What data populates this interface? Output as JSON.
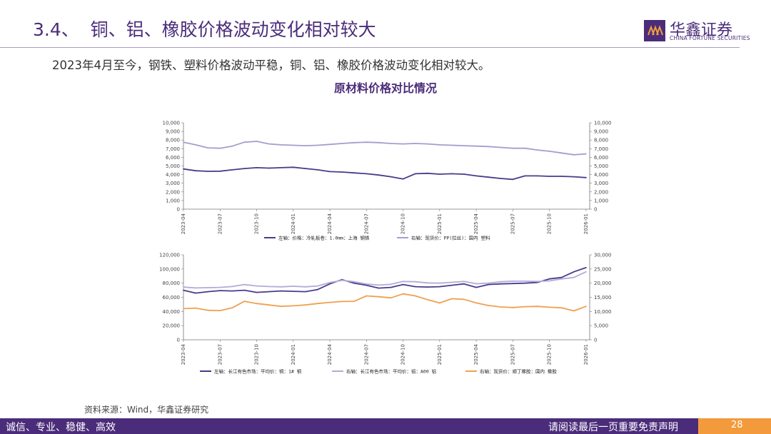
{
  "header": {
    "title": "3.4、  铜、铝、橡胶价格波动变化相对较大",
    "logo_cn": "华鑫证券",
    "logo_en": "CHINA FORTUNE SECURITIES"
  },
  "subtitle": "2023年4月至今，钢铁、塑料价格波动平稳，铜、铝、橡胶价格波动变化相对较大。",
  "chart_title": "原材料价格对比情况",
  "source": "资料来源：Wind，华鑫证券研究",
  "footer": {
    "left": "诚信、专业、稳健、高效",
    "right": "请阅读最后一页重要免责声明",
    "page": "28"
  },
  "colors": {
    "brand": "#4a2c7a",
    "steel": "#4b3a8c",
    "plastic": "#a79ccf",
    "copper": "#4b3a8c",
    "aluminum": "#b4aad6",
    "rubber": "#f0a050",
    "accent": "#f39a3d"
  },
  "chart_data": [
    {
      "type": "line",
      "x_ticks": [
        "2023-04",
        "2023-07",
        "2023-10",
        "2024-01",
        "2024-04",
        "2024-07",
        "2024-10",
        "2025-01",
        "2025-04",
        "2025-07",
        "2025-10",
        "2026-01"
      ],
      "y_left_ticks": [
        "0",
        "1,000",
        "2,000",
        "3,000",
        "4,000",
        "5,000",
        "6,000",
        "7,000",
        "8,000",
        "9,000",
        "10,000"
      ],
      "y_right_ticks": [
        "0",
        "1,000",
        "2,000",
        "3,000",
        "4,000",
        "5,000",
        "6,000",
        "7,000",
        "8,000",
        "9,000",
        "10,000"
      ],
      "ylim_left": [
        0,
        10000
      ],
      "ylim_right": [
        0,
        10000
      ],
      "series": [
        {
          "name": "左轴：价格：冷轧板卷：1.0mm：上海 钢铁",
          "axis": "left",
          "color": "#4b3a8c",
          "x": [
            "2023-04",
            "2023-05",
            "2023-06",
            "2023-07",
            "2023-08",
            "2023-09",
            "2023-10",
            "2023-11",
            "2023-12",
            "2024-01",
            "2024-02",
            "2024-03",
            "2024-04",
            "2024-05",
            "2024-06",
            "2024-07",
            "2024-08",
            "2024-09",
            "2024-10",
            "2024-11",
            "2024-12",
            "2025-01",
            "2025-02",
            "2025-03",
            "2025-04",
            "2025-05",
            "2025-06",
            "2025-07",
            "2025-08",
            "2025-09",
            "2025-10",
            "2025-11",
            "2025-12",
            "2026-01"
          ],
          "values": [
            4650,
            4450,
            4380,
            4400,
            4550,
            4700,
            4800,
            4750,
            4800,
            4850,
            4700,
            4550,
            4350,
            4300,
            4200,
            4100,
            3950,
            3750,
            3500,
            4100,
            4150,
            4050,
            4100,
            4050,
            3850,
            3700,
            3550,
            3450,
            3850,
            3850,
            3800,
            3800,
            3750,
            3650
          ]
        },
        {
          "name": "右轴：现货价：PP(拉丝)：国内 塑料",
          "axis": "right",
          "color": "#a79ccf",
          "x": [
            "2023-04",
            "2023-05",
            "2023-06",
            "2023-07",
            "2023-08",
            "2023-09",
            "2023-10",
            "2023-11",
            "2023-12",
            "2024-01",
            "2024-02",
            "2024-03",
            "2024-04",
            "2024-05",
            "2024-06",
            "2024-07",
            "2024-08",
            "2024-09",
            "2024-10",
            "2024-11",
            "2024-12",
            "2025-01",
            "2025-02",
            "2025-03",
            "2025-04",
            "2025-05",
            "2025-06",
            "2025-07",
            "2025-08",
            "2025-09",
            "2025-10",
            "2025-11",
            "2025-12",
            "2026-01"
          ],
          "values": [
            7750,
            7450,
            7100,
            7050,
            7300,
            7750,
            7850,
            7550,
            7450,
            7400,
            7350,
            7400,
            7500,
            7600,
            7700,
            7750,
            7700,
            7600,
            7550,
            7600,
            7550,
            7450,
            7400,
            7350,
            7300,
            7250,
            7150,
            7050,
            7050,
            6850,
            6700,
            6500,
            6300,
            6400
          ]
        }
      ]
    },
    {
      "type": "line",
      "x_ticks": [
        "2023-04",
        "2023-07",
        "2023-10",
        "2024-01",
        "2024-04",
        "2024-07",
        "2024-10",
        "2025-01",
        "2025-04",
        "2025-07",
        "2025-10",
        "2026-01"
      ],
      "y_left_ticks": [
        "0",
        "20,000",
        "40,000",
        "60,000",
        "80,000",
        "100,000",
        "120,000"
      ],
      "y_right_ticks": [
        "0",
        "5,000",
        "10,000",
        "15,000",
        "20,000",
        "25,000",
        "30,000"
      ],
      "ylim_left": [
        0,
        120000
      ],
      "ylim_right": [
        0,
        30000
      ],
      "series": [
        {
          "name": "左轴：长江有色市场：平均价：铜：1# 铜",
          "axis": "left",
          "color": "#4b3a8c",
          "x": [
            "2023-04",
            "2023-05",
            "2023-06",
            "2023-07",
            "2023-08",
            "2023-09",
            "2023-10",
            "2023-11",
            "2023-12",
            "2024-01",
            "2024-02",
            "2024-03",
            "2024-04",
            "2024-05",
            "2024-06",
            "2024-07",
            "2024-08",
            "2024-09",
            "2024-10",
            "2024-11",
            "2024-12",
            "2025-01",
            "2025-02",
            "2025-03",
            "2025-04",
            "2025-05",
            "2025-06",
            "2025-07",
            "2025-08",
            "2025-09",
            "2025-10",
            "2025-11",
            "2025-12",
            "2026-01"
          ],
          "values": [
            70000,
            66000,
            68000,
            69500,
            69000,
            70000,
            67000,
            68000,
            69000,
            68500,
            68000,
            71000,
            79000,
            85000,
            80000,
            77000,
            73000,
            74000,
            78000,
            75000,
            74500,
            75000,
            77000,
            79000,
            74000,
            78000,
            79000,
            79500,
            80000,
            81000,
            86000,
            88000,
            96000,
            102000
          ]
        },
        {
          "name": "右轴：长江有色市场：平均价：铝：A00 铝",
          "axis": "right",
          "color": "#b4aad6",
          "x": [
            "2023-04",
            "2023-05",
            "2023-06",
            "2023-07",
            "2023-08",
            "2023-09",
            "2023-10",
            "2023-11",
            "2023-12",
            "2024-01",
            "2024-02",
            "2024-03",
            "2024-04",
            "2024-05",
            "2024-06",
            "2024-07",
            "2024-08",
            "2024-09",
            "2024-10",
            "2024-11",
            "2024-12",
            "2025-01",
            "2025-02",
            "2025-03",
            "2025-04",
            "2025-05",
            "2025-06",
            "2025-07",
            "2025-08",
            "2025-09",
            "2025-10",
            "2025-11",
            "2025-12",
            "2026-01"
          ],
          "values": [
            18600,
            18300,
            18400,
            18500,
            18800,
            19500,
            19000,
            18800,
            18700,
            18900,
            18700,
            19000,
            20200,
            21000,
            20500,
            19700,
            19300,
            19600,
            20600,
            20500,
            20100,
            20000,
            20300,
            20600,
            19800,
            20000,
            20500,
            20700,
            20700,
            20600,
            20800,
            21500,
            22000,
            24000
          ]
        },
        {
          "name": "右轴：现货价：顺丁橡胶：国内 橡胶",
          "axis": "right",
          "color": "#f0a050",
          "x": [
            "2023-04",
            "2023-05",
            "2023-06",
            "2023-07",
            "2023-08",
            "2023-09",
            "2023-10",
            "2023-11",
            "2023-12",
            "2024-01",
            "2024-02",
            "2024-03",
            "2024-04",
            "2024-05",
            "2024-06",
            "2024-07",
            "2024-08",
            "2024-09",
            "2024-10",
            "2024-11",
            "2024-12",
            "2025-01",
            "2025-02",
            "2025-03",
            "2025-04",
            "2025-05",
            "2025-06",
            "2025-07",
            "2025-08",
            "2025-09",
            "2025-10",
            "2025-11",
            "2025-12",
            "2026-01"
          ],
          "values": [
            11000,
            11200,
            10400,
            10300,
            11300,
            13600,
            12800,
            12300,
            11800,
            12000,
            12300,
            12800,
            13200,
            13500,
            13600,
            15500,
            15200,
            14800,
            16200,
            15500,
            14200,
            13000,
            14500,
            14300,
            13000,
            12100,
            11600,
            11400,
            11700,
            11800,
            11500,
            11300,
            10200,
            11800
          ]
        }
      ]
    }
  ]
}
